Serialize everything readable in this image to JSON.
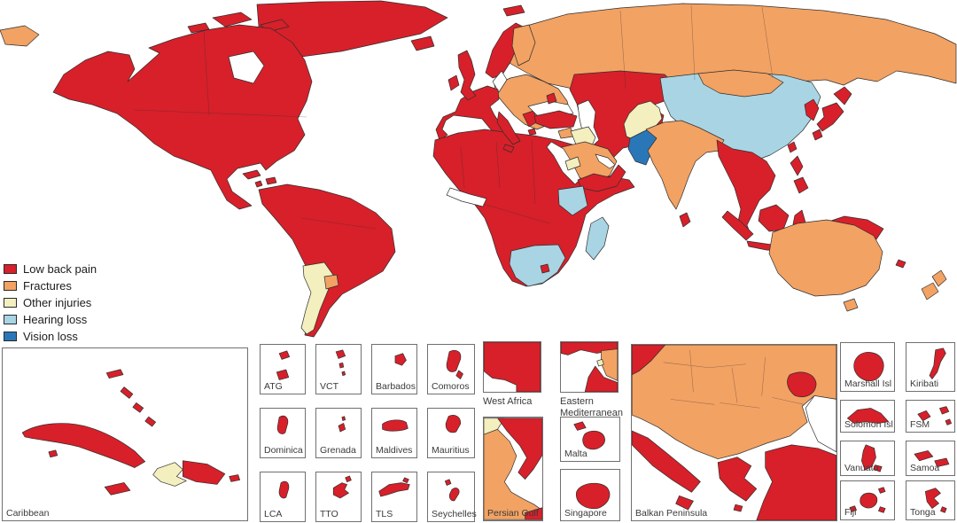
{
  "legend": {
    "items": [
      {
        "label": "Low back pain",
        "category": "low_back_pain"
      },
      {
        "label": "Fractures",
        "category": "fractures"
      },
      {
        "label": "Other injuries",
        "category": "other_injuries"
      },
      {
        "label": "Hearing loss",
        "category": "hearing_loss"
      },
      {
        "label": "Vision loss",
        "category": "vision_loss"
      }
    ]
  },
  "colors": {
    "low_back_pain": "#d7202a",
    "fractures": "#f2a263",
    "other_injuries": "#f3efbe",
    "hearing_loss": "#a9d4e4",
    "vision_loss": "#2a77b8",
    "coastline": "#2e2e2e",
    "inset_border": "#707070",
    "label_text": "#3a3a3a"
  },
  "main_map": {
    "regions": [
      {
        "name": "russia",
        "category": "fractures"
      },
      {
        "name": "chukotka",
        "category": "fractures"
      },
      {
        "name": "kazakhstan-central-asia-iran",
        "category": "low_back_pain"
      },
      {
        "name": "eastern-europe",
        "category": "fractures"
      },
      {
        "name": "scandinavia",
        "category": "low_back_pain"
      },
      {
        "name": "finland",
        "category": "fractures"
      },
      {
        "name": "svalbard",
        "category": "low_back_pain"
      },
      {
        "name": "baltic-sea",
        "category": "sea"
      },
      {
        "name": "western-europe",
        "category": "low_back_pain"
      },
      {
        "name": "britain",
        "category": "low_back_pain"
      },
      {
        "name": "ireland",
        "category": "low_back_pain"
      },
      {
        "name": "iceland",
        "category": "low_back_pain"
      },
      {
        "name": "africa",
        "category": "low_back_pain"
      },
      {
        "name": "gulf-of-guinea",
        "category": "sea"
      },
      {
        "name": "italy",
        "category": "low_back_pain"
      },
      {
        "name": "greece",
        "category": "low_back_pain"
      },
      {
        "name": "black-sea",
        "category": "sea"
      },
      {
        "name": "caspian-sea",
        "category": "sea"
      },
      {
        "name": "moldova",
        "category": "low_back_pain"
      },
      {
        "name": "turkey",
        "category": "low_back_pain"
      },
      {
        "name": "syria",
        "category": "fractures"
      },
      {
        "name": "iraq",
        "category": "other_injuries"
      },
      {
        "name": "saudi-arabia",
        "category": "fractures"
      },
      {
        "name": "red-sea",
        "category": "sea"
      },
      {
        "name": "persian-gulf-sea",
        "category": "sea"
      },
      {
        "name": "yemen-oman",
        "category": "low_back_pain"
      },
      {
        "name": "eritrea",
        "category": "other_injuries"
      },
      {
        "name": "kenya",
        "category": "hearing_loss"
      },
      {
        "name": "south-africa",
        "category": "hearing_loss"
      },
      {
        "name": "lesotho",
        "category": "low_back_pain"
      },
      {
        "name": "madagascar",
        "category": "hearing_loss"
      },
      {
        "name": "china",
        "category": "hearing_loss"
      },
      {
        "name": "mongolia",
        "category": "fractures"
      },
      {
        "name": "afghanistan-tajikistan",
        "category": "other_injuries"
      },
      {
        "name": "pakistan",
        "category": "vision_loss"
      },
      {
        "name": "india-nepal-bangladesh",
        "category": "fractures"
      },
      {
        "name": "sri-lanka",
        "category": "low_back_pain"
      },
      {
        "name": "southeast-asia",
        "category": "low_back_pain"
      },
      {
        "name": "sumatra",
        "category": "low_back_pain"
      },
      {
        "name": "java",
        "category": "low_back_pain"
      },
      {
        "name": "borneo",
        "category": "low_back_pain"
      },
      {
        "name": "sulawesi",
        "category": "low_back_pain"
      },
      {
        "name": "new-guinea",
        "category": "low_back_pain"
      },
      {
        "name": "philippines",
        "category": "low_back_pain"
      },
      {
        "name": "taiwan",
        "category": "low_back_pain"
      },
      {
        "name": "korea",
        "category": "low_back_pain"
      },
      {
        "name": "japan",
        "category": "low_back_pain"
      },
      {
        "name": "australia",
        "category": "fractures"
      },
      {
        "name": "tasmania",
        "category": "fractures"
      },
      {
        "name": "new-zealand",
        "category": "fractures"
      },
      {
        "name": "new-caledonia",
        "category": "low_back_pain"
      },
      {
        "name": "greenland",
        "category": "low_back_pain"
      },
      {
        "name": "arctic-islands",
        "category": "low_back_pain"
      },
      {
        "name": "north-america",
        "category": "low_back_pain"
      },
      {
        "name": "hudson-bay",
        "category": "sea"
      },
      {
        "name": "south-america",
        "category": "low_back_pain"
      },
      {
        "name": "argentina",
        "category": "other_injuries"
      },
      {
        "name": "uruguay",
        "category": "fractures"
      },
      {
        "name": "caribbean-islands",
        "category": "low_back_pain"
      }
    ]
  },
  "insets": [
    {
      "id": "caribbean",
      "label": "Caribbean"
    },
    {
      "id": "atg",
      "label": "ATG"
    },
    {
      "id": "vct",
      "label": "VCT"
    },
    {
      "id": "barbados",
      "label": "Barbados"
    },
    {
      "id": "comoros",
      "label": "Comoros"
    },
    {
      "id": "west-africa",
      "label": "West Africa"
    },
    {
      "id": "eastern-mediterranean",
      "label": "Eastern Mediterranean"
    },
    {
      "id": "dominica",
      "label": "Dominica"
    },
    {
      "id": "grenada",
      "label": "Grenada"
    },
    {
      "id": "maldives",
      "label": "Maldives"
    },
    {
      "id": "mauritius",
      "label": "Mauritius"
    },
    {
      "id": "malta",
      "label": "Malta"
    },
    {
      "id": "lca",
      "label": "LCA"
    },
    {
      "id": "tto",
      "label": "TTO"
    },
    {
      "id": "tls",
      "label": "TLS"
    },
    {
      "id": "seychelles",
      "label": "Seychelles"
    },
    {
      "id": "persian-gulf",
      "label": "Persian Gulf"
    },
    {
      "id": "singapore",
      "label": "Singapore"
    },
    {
      "id": "balkan-peninsula",
      "label": "Balkan Peninsula"
    },
    {
      "id": "marshall-isl",
      "label": "Marshall Isl"
    },
    {
      "id": "kiribati",
      "label": "Kiribati"
    },
    {
      "id": "solomon-isl",
      "label": "Solomon Isl"
    },
    {
      "id": "fsm",
      "label": "FSM"
    },
    {
      "id": "vanuatu",
      "label": "Vanuatu"
    },
    {
      "id": "samoa",
      "label": "Samoa"
    },
    {
      "id": "fiji",
      "label": "Fiji"
    },
    {
      "id": "tonga",
      "label": "Tonga"
    }
  ]
}
